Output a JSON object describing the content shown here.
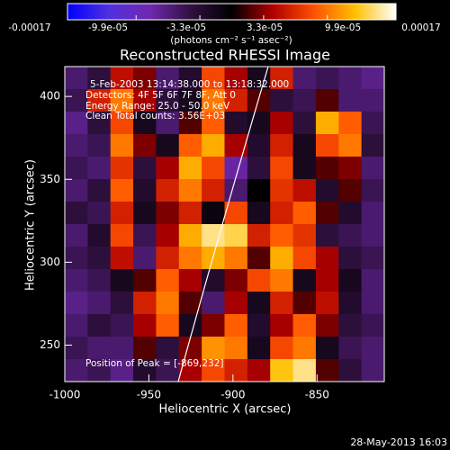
{
  "chart_data": {
    "type": "heatmap",
    "title": "Reconstructed RHESSI Image",
    "colorbar_label": "(photons cm⁻² s⁻¹ asec⁻²)",
    "x_label": "Heliocentric X (arcsec)",
    "y_label": "Heliocentric Y (arcsec)",
    "annotations": [
      "5-Feb-2003 13:14:38.000 to 13:18:32.000",
      "Detectors: 4F 5F 6F 7F 8F, Att 0",
      "Energy Range: 25.0 - 50.0 keV",
      "Clean     Total counts: 3.56E+03"
    ],
    "peak_label": "Position of Peak = [-869,232]",
    "timestamp": "28-May-2013 16:03",
    "colors": [
      "#0000ff",
      "#5030e0",
      "#7028b0",
      "#301040",
      "#000000",
      "#b00000",
      "#ff5000",
      "#ffc000",
      "#ffffff"
    ],
    "clim": [
      -0.00017,
      0.00017
    ],
    "cticks": [
      -0.00017,
      {
        "value": -9.9e-05,
        "label": "-9.9e-05"
      },
      {
        "value": -3.3e-05,
        "label": "-3.3e-05"
      },
      {
        "value": 3.3e-05,
        "label": "3.3e-05"
      },
      {
        "value": 9.9e-05,
        "label": "9.9e-05"
      },
      0.00017
    ],
    "xlim": [
      -1000,
      -810
    ],
    "ylim": [
      228,
      418
    ],
    "xticks": [
      -1000,
      -950,
      -900,
      -850
    ],
    "yticks": [
      250,
      300,
      350,
      400
    ],
    "z": [
      [
        -6e-05,
        -4e-05,
        5e-05,
        3e-05,
        -6e-05,
        -3e-05,
        8e-05,
        4e-05,
        -2e-05,
        6e-05,
        -6e-05,
        -5e-05,
        -6e-05,
        -7e-05
      ],
      [
        -5e-05,
        6e-05,
        0.0001,
        4e-05,
        -4e-05,
        -2e-05,
        0.0001,
        6e-05,
        2e-05,
        -4e-05,
        -5e-05,
        2e-05,
        -6e-05,
        -6e-05
      ],
      [
        -7e-05,
        -4e-05,
        8e-05,
        -2e-05,
        -6e-05,
        2e-05,
        9e-05,
        -3e-05,
        -2e-05,
        4e-05,
        -4e-05,
        0.00012,
        9e-05,
        -5e-05
      ],
      [
        -6e-05,
        -5e-05,
        0.0001,
        3e-05,
        -2e-05,
        9e-05,
        0.00012,
        4e-05,
        -3e-05,
        6e-05,
        -2e-05,
        8e-05,
        0.0001,
        -4e-05
      ],
      [
        -5e-05,
        -6e-05,
        7e-05,
        -4e-05,
        4e-05,
        0.00012,
        8e-05,
        -8e-05,
        -4e-05,
        8e-05,
        -2e-05,
        2e-05,
        3e-05,
        -6e-05
      ],
      [
        -6e-05,
        -4e-05,
        9e-05,
        -3e-05,
        6e-05,
        0.0001,
        6e-05,
        -6e-05,
        0,
        7e-05,
        5e-05,
        -3e-05,
        2e-05,
        -5e-05
      ],
      [
        -4e-05,
        -5e-05,
        6e-05,
        -2e-05,
        3e-05,
        6e-05,
        -1e-05,
        8e-05,
        -2e-05,
        6e-05,
        9e-05,
        2e-05,
        -3e-05,
        -6e-05
      ],
      [
        -6e-05,
        -3e-05,
        8e-05,
        -5e-05,
        4e-05,
        0.00012,
        0.00015,
        0.00014,
        6e-05,
        9e-05,
        7e-05,
        -4e-05,
        -5e-05,
        -6e-05
      ],
      [
        -5e-05,
        -4e-05,
        5e-05,
        -6e-05,
        6e-05,
        0.0001,
        0.00012,
        0.0001,
        2e-05,
        0.00012,
        8e-05,
        4e-05,
        -4e-05,
        -5e-05
      ],
      [
        -6e-05,
        -5e-05,
        -2e-05,
        2e-05,
        9e-05,
        4e-05,
        -3e-05,
        3e-05,
        8e-05,
        0.0001,
        -2e-05,
        4e-05,
        -2e-05,
        -6e-05
      ],
      [
        -7e-05,
        -6e-05,
        -4e-05,
        6e-05,
        0.0001,
        2e-05,
        -6e-05,
        4e-05,
        -2e-05,
        6e-05,
        2e-05,
        5e-05,
        -3e-05,
        -6e-05
      ],
      [
        -6e-05,
        -4e-05,
        -5e-05,
        4e-05,
        9e-05,
        -2e-05,
        3e-05,
        9e-05,
        -3e-05,
        4e-05,
        9e-05,
        3e-05,
        -4e-05,
        -5e-05
      ],
      [
        -5e-05,
        -6e-05,
        -6e-05,
        2e-05,
        -4e-05,
        3e-05,
        0.00011,
        0.0001,
        -2e-05,
        8e-05,
        0.0001,
        -2e-05,
        -5e-05,
        -6e-05
      ],
      [
        -6e-05,
        -5e-05,
        -7e-05,
        -3e-05,
        -5e-05,
        4e-05,
        8e-05,
        6e-05,
        4e-05,
        0.00013,
        0.00015,
        2e-05,
        -4e-05,
        -6e-05
      ]
    ]
  }
}
